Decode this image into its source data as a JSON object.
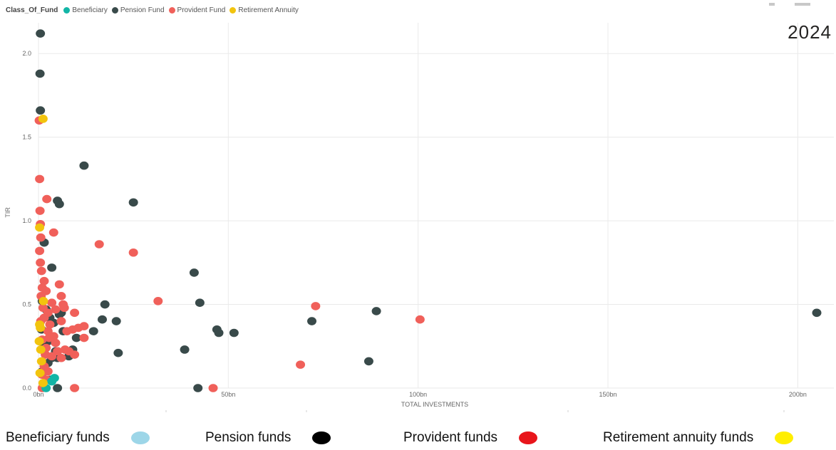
{
  "legend_top": {
    "title": "Class_Of_Fund",
    "items": [
      {
        "label": "Beneficiary",
        "color": "#12b5a6"
      },
      {
        "label": "Pension Fund",
        "color": "#394a4a"
      },
      {
        "label": "Provident Fund",
        "color": "#f0605a"
      },
      {
        "label": "Retirement Annuity",
        "color": "#f2c40e"
      }
    ]
  },
  "year": "2024",
  "bottom_legend": [
    {
      "label": "Beneficiary funds",
      "color": "#9dd6e8"
    },
    {
      "label": "Pension funds",
      "color": "#000000"
    },
    {
      "label": "Provident funds",
      "color": "#e8151b"
    },
    {
      "label": "Retirement annuity funds",
      "color": "#ffee00"
    }
  ],
  "chart_data": {
    "type": "scatter",
    "xlabel": "TOTAL INVESTMENTS",
    "ylabel": "TIR",
    "xlim": [
      0,
      205
    ],
    "ylim": [
      0,
      2.15
    ],
    "x_unit": "bn",
    "x_ticks": [
      {
        "value": 0,
        "label": "0bn"
      },
      {
        "value": 50,
        "label": "50bn"
      },
      {
        "value": 100,
        "label": "100bn"
      },
      {
        "value": 150,
        "label": "150bn"
      },
      {
        "value": 200,
        "label": "200bn"
      }
    ],
    "y_ticks": [
      {
        "value": 0,
        "label": "0.0"
      },
      {
        "value": 0.5,
        "label": "0.5"
      },
      {
        "value": 1.0,
        "label": "1.0"
      },
      {
        "value": 1.5,
        "label": "1.5"
      },
      {
        "value": 2.0,
        "label": "2.0"
      }
    ],
    "grid": true,
    "series": [
      {
        "name": "Beneficiary",
        "color": "#12b5a6",
        "points": [
          [
            3.5,
            0.04
          ],
          [
            4.2,
            0.06
          ],
          [
            2.0,
            0.0
          ]
        ]
      },
      {
        "name": "Pension Fund",
        "color": "#394a4a",
        "points": [
          [
            0.5,
            2.12
          ],
          [
            0.4,
            1.88
          ],
          [
            0.5,
            1.66
          ],
          [
            12,
            1.33
          ],
          [
            5,
            1.12
          ],
          [
            5.5,
            1.1
          ],
          [
            25,
            1.11
          ],
          [
            1.5,
            0.87
          ],
          [
            3.5,
            0.72
          ],
          [
            41,
            0.69
          ],
          [
            42.5,
            0.51
          ],
          [
            17.5,
            0.5
          ],
          [
            16.8,
            0.41
          ],
          [
            20.5,
            0.4
          ],
          [
            89,
            0.46
          ],
          [
            72,
            0.4
          ],
          [
            47,
            0.35
          ],
          [
            47.5,
            0.33
          ],
          [
            51.5,
            0.33
          ],
          [
            14.5,
            0.34
          ],
          [
            10,
            0.3
          ],
          [
            38.5,
            0.23
          ],
          [
            21,
            0.21
          ],
          [
            87,
            0.16
          ],
          [
            42,
            0.0
          ],
          [
            9,
            0.23
          ],
          [
            8,
            0.19
          ],
          [
            6,
            0.45
          ],
          [
            5.5,
            0.44
          ],
          [
            4,
            0.39
          ],
          [
            2.5,
            0.28
          ],
          [
            4.5,
            0.22
          ],
          [
            5,
            0.22
          ],
          [
            3.5,
            0.18
          ],
          [
            5,
            0.18
          ],
          [
            6.5,
            0.34
          ],
          [
            1.0,
            0.52
          ],
          [
            2.0,
            0.47
          ],
          [
            3.0,
            0.42
          ],
          [
            0.8,
            0.35
          ],
          [
            1.5,
            0.25
          ],
          [
            2.5,
            0.15
          ],
          [
            1.0,
            0.1
          ],
          [
            3.0,
            0.05
          ],
          [
            5.0,
            0.0
          ],
          [
            205,
            0.45
          ]
        ]
      },
      {
        "name": "Provident Fund",
        "color": "#f0605a",
        "points": [
          [
            0.2,
            1.6
          ],
          [
            0.3,
            1.25
          ],
          [
            2.2,
            1.13
          ],
          [
            0.4,
            1.06
          ],
          [
            4,
            0.93
          ],
          [
            16,
            0.86
          ],
          [
            25,
            0.81
          ],
          [
            0.5,
            0.98
          ],
          [
            0.6,
            0.9
          ],
          [
            0.3,
            0.82
          ],
          [
            0.5,
            0.75
          ],
          [
            0.8,
            0.7
          ],
          [
            1.5,
            0.64
          ],
          [
            5.5,
            0.62
          ],
          [
            6,
            0.55
          ],
          [
            1.0,
            0.6
          ],
          [
            2.0,
            0.58
          ],
          [
            31.5,
            0.52
          ],
          [
            73,
            0.49
          ],
          [
            100.5,
            0.41
          ],
          [
            69,
            0.14
          ],
          [
            46,
            0.0
          ],
          [
            9.5,
            0.0
          ],
          [
            9.5,
            0.45
          ],
          [
            6.5,
            0.5
          ],
          [
            3.5,
            0.51
          ],
          [
            4.5,
            0.47
          ],
          [
            6,
            0.4
          ],
          [
            12,
            0.37
          ],
          [
            10.5,
            0.36
          ],
          [
            9,
            0.35
          ],
          [
            7.5,
            0.34
          ],
          [
            12,
            0.3
          ],
          [
            8,
            0.22
          ],
          [
            9.5,
            0.2
          ],
          [
            6,
            0.18
          ],
          [
            4.5,
            0.27
          ],
          [
            5,
            0.22
          ],
          [
            2.5,
            0.34
          ],
          [
            1.5,
            0.42
          ],
          [
            2.5,
            0.45
          ],
          [
            3,
            0.38
          ],
          [
            1.0,
            0.29
          ],
          [
            2.0,
            0.24
          ],
          [
            3.5,
            0.19
          ],
          [
            1.5,
            0.13
          ],
          [
            2.5,
            0.1
          ],
          [
            0.7,
            0.55
          ],
          [
            1.2,
            0.48
          ],
          [
            0.6,
            0.4
          ],
          [
            2.8,
            0.3
          ],
          [
            1.8,
            0.2
          ],
          [
            0.9,
            0.08
          ],
          [
            2.2,
            0.05
          ],
          [
            4.0,
            0.31
          ],
          [
            6.8,
            0.48
          ],
          [
            7.0,
            0.23
          ],
          [
            1.0,
            0.0
          ]
        ]
      },
      {
        "name": "Retirement Annuity",
        "color": "#f2c40e",
        "points": [
          [
            1.2,
            1.61
          ],
          [
            0.3,
            0.96
          ],
          [
            1.3,
            0.52
          ],
          [
            0.3,
            0.38
          ],
          [
            0.5,
            0.36
          ],
          [
            0.6,
            0.23
          ],
          [
            0.8,
            0.16
          ],
          [
            0.4,
            0.09
          ],
          [
            1.2,
            0.03
          ],
          [
            0.2,
            0.28
          ]
        ]
      }
    ]
  }
}
